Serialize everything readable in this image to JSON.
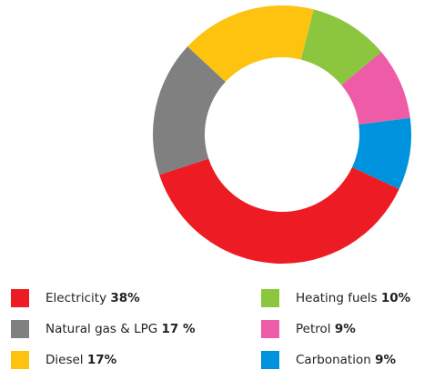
{
  "chart_data": {
    "type": "donut",
    "categories": [
      "Electricity",
      "Natural gas & LPG",
      "Diesel",
      "Heating fuels",
      "Petrol",
      "Carbonation"
    ],
    "values": [
      38,
      17,
      17,
      10,
      9,
      9
    ],
    "value_labels": [
      "38%",
      "17 %",
      "17%",
      "10%",
      "9%",
      "9%"
    ],
    "colors": [
      "#ed1c24",
      "#808080",
      "#fdc30f",
      "#8cc63f",
      "#ee5ca8",
      "#0093dd"
    ]
  }
}
